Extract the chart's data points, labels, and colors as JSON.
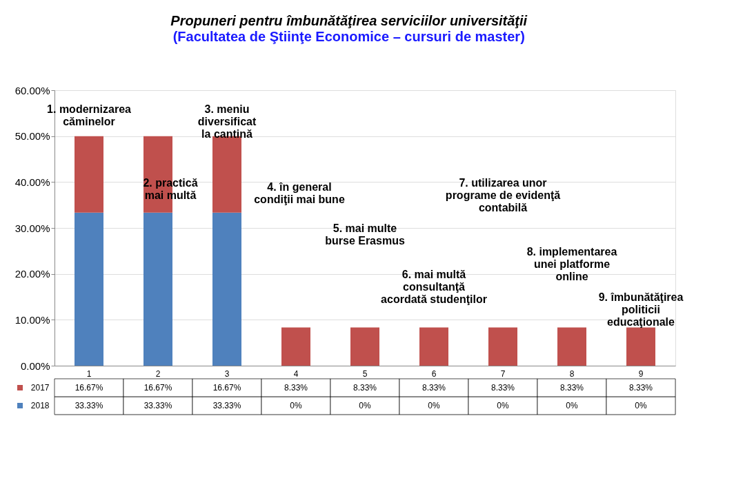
{
  "chart_data": {
    "type": "bar",
    "title": "Propuneri pentru îmbunătăţirea  serviciilor universităţii",
    "subtitle": "(Facultatea de Ştiinţe Economice – cursuri de master)",
    "categories": [
      "1",
      "2",
      "3",
      "4",
      "5",
      "6",
      "7",
      "8",
      "9"
    ],
    "stacked": true,
    "series": [
      {
        "name": "2018",
        "color": "#4f81bd",
        "values": [
          33.33,
          33.33,
          33.33,
          0,
          0,
          0,
          0,
          0,
          0
        ],
        "value_labels": [
          "33.33%",
          "33.33%",
          "33.33%",
          "0%",
          "0%",
          "0%",
          "0%",
          "0%",
          "0%"
        ]
      },
      {
        "name": "2017",
        "color": "#c0504d",
        "values": [
          16.67,
          16.67,
          16.67,
          8.33,
          8.33,
          8.33,
          8.33,
          8.33,
          8.33
        ],
        "value_labels": [
          "16.67%",
          "16.67%",
          "16.67%",
          "8.33%",
          "8.33%",
          "8.33%",
          "8.33%",
          "8.33%",
          "8.33%"
        ]
      }
    ],
    "ylim": [
      0,
      60
    ],
    "yticks": [
      {
        "value": 0,
        "label": "0.00%"
      },
      {
        "value": 10,
        "label": "10.00%"
      },
      {
        "value": 20,
        "label": "20.00%"
      },
      {
        "value": 30,
        "label": "30.00%"
      },
      {
        "value": 40,
        "label": "40.00%"
      },
      {
        "value": 50,
        "label": "50.00%"
      },
      {
        "value": 60,
        "label": "60.00%"
      }
    ],
    "grid": "y",
    "legend": "bottom",
    "annotations": [
      "1. modernizarea\ncăminelor",
      "2. practică\nmai multă",
      "3. meniu\ndiversificat\nla cantină",
      "4. în general\ncondiţii mai bune",
      "5. mai multe\nburse Erasmus",
      "6. mai multă\nconsultanţă\nacordată studenţilor",
      "7. utilizarea unor\nprograme de evidenţă\ncontabilă",
      "8. implementarea\nunei platforme\nonline",
      "9. îmbunătăţirea\npoliticii\neducaţionale"
    ]
  }
}
